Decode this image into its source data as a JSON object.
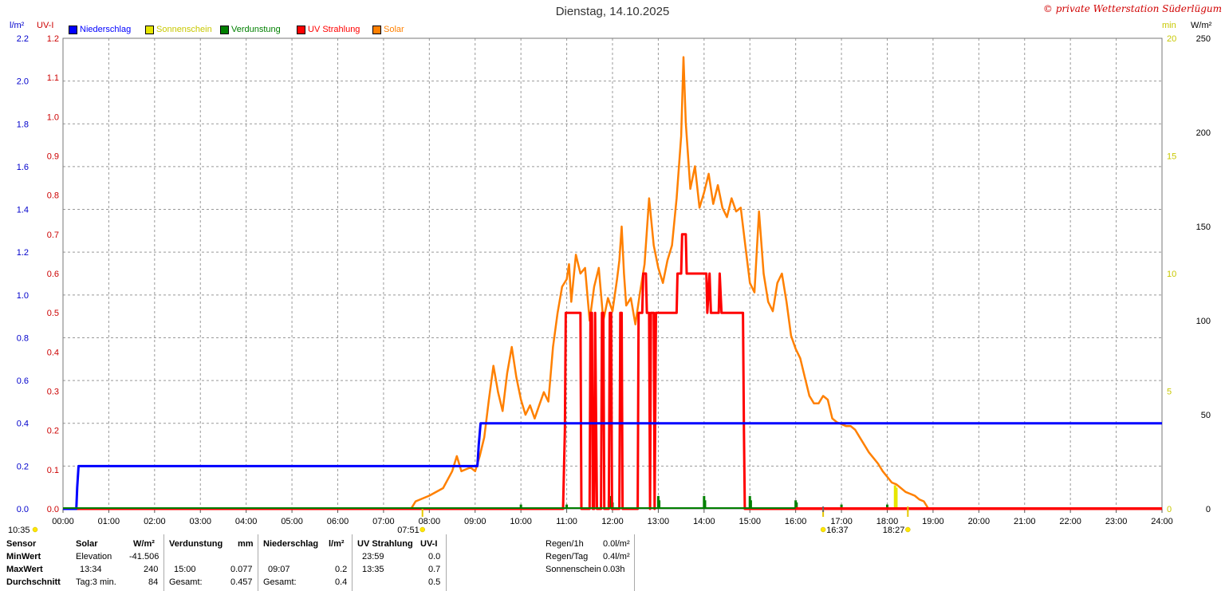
{
  "title": "Dienstag, 14.10.2025",
  "copyright": "© private Wetterstation Süderlügum",
  "units": {
    "left_outer": "l/m²",
    "left_inner": "UV-I",
    "right_inner": "min",
    "right_outer": "W/m²"
  },
  "legend": [
    {
      "label": "Niederschlag",
      "color": "#0000ff",
      "text_color": "#0000ff"
    },
    {
      "label": "Sonnenschein",
      "color": "#e6e600",
      "text_color": "#c8c800"
    },
    {
      "label": "Verdunstung",
      "color": "#008000",
      "text_color": "#008000"
    },
    {
      "label": "UV Strahlung",
      "color": "#ff0000",
      "text_color": "#ff0000"
    },
    {
      "label": "Solar",
      "color": "#ff8000",
      "text_color": "#ff8000"
    }
  ],
  "markers": {
    "bottom_left_time": "10:35",
    "sunrise": "07:51",
    "sunset_a": "16:37",
    "sunset_b": "18:27"
  },
  "stats": {
    "headers": {
      "sensor": "Sensor",
      "solar": "Solar",
      "solar_unit": "W/m²",
      "verd": "Verdunstung",
      "verd_unit": "mm",
      "nied": "Niederschlag",
      "nied_unit": "l/m²",
      "uv": "UV Strahlung",
      "uv_unit": "UV-I"
    },
    "row_labels": [
      "MinWert",
      "MaxWert",
      "Durchschnitt"
    ],
    "solar_min_label": "Elevation",
    "solar_min_value": "-41.506",
    "solar_max_time": "13:34",
    "solar_max_value": "240",
    "solar_avg_label": "Tag:3 min.",
    "solar_avg_value": "84",
    "verd_max_time": "15:00",
    "verd_max_value": "0.077",
    "verd_total_label": "Gesamt:",
    "verd_total_value": "0.457",
    "nied_max_time": "09:07",
    "nied_max_value": "0.2",
    "nied_total_label": "Gesamt:",
    "nied_total_value": "0.4",
    "uv_min_time": "23:59",
    "uv_min_value": "0.0",
    "uv_max_time": "13:35",
    "uv_max_value": "0.7",
    "uv_avg_value": "0.5",
    "regen1h_label": "Regen/1h",
    "regen1h_value": "0.0l/m²",
    "regentag_label": "Regen/Tag",
    "regentag_value": "0.4l/m²",
    "sonne_label": "Sonnenschein",
    "sonne_value": "0.03h"
  },
  "chart_data": {
    "type": "line",
    "x_ticks": [
      "00:00",
      "01:00",
      "02:00",
      "03:00",
      "04:00",
      "05:00",
      "06:00",
      "07:00",
      "08:00",
      "09:00",
      "10:00",
      "11:00",
      "12:00",
      "13:00",
      "14:00",
      "15:00",
      "16:00",
      "17:00",
      "18:00",
      "19:00",
      "20:00",
      "21:00",
      "22:00",
      "23:00",
      "24:00"
    ],
    "axes": {
      "niederschlag": {
        "unit": "l/m²",
        "range": [
          0,
          2.2
        ],
        "ticks": [
          "0.0",
          "0.2",
          "0.4",
          "0.6",
          "0.8",
          "1.0",
          "1.2",
          "1.4",
          "1.6",
          "1.8",
          "2.0",
          "2.2"
        ],
        "color": "#0000cc"
      },
      "uv": {
        "unit": "UV-I",
        "range": [
          0,
          1.2
        ],
        "ticks": [
          "0.0",
          "0.1",
          "0.2",
          "0.3",
          "0.4",
          "0.5",
          "0.6",
          "0.7",
          "0.8",
          "0.9",
          "1.0",
          "1.1",
          "1.2"
        ],
        "color": "#cc0000"
      },
      "sonnenschein": {
        "unit": "min",
        "range": [
          0,
          20
        ],
        "ticks": [
          "0",
          "5",
          "10",
          "15",
          "20"
        ],
        "color": "#c8c800"
      },
      "solar": {
        "unit": "W/m²",
        "range": [
          0,
          250
        ],
        "ticks": [
          "0",
          "50",
          "100",
          "150",
          "200",
          "250"
        ],
        "color": "#000000"
      }
    },
    "grid": true,
    "series": [
      {
        "name": "Niederschlag",
        "color": "#0000ff",
        "axis": "niederschlag",
        "points": [
          [
            0,
            0
          ],
          [
            0.29,
            0
          ],
          [
            0.31,
            0.1
          ],
          [
            0.34,
            0.2
          ],
          [
            9.05,
            0.2
          ],
          [
            9.08,
            0.3
          ],
          [
            9.12,
            0.4
          ],
          [
            24,
            0.4
          ]
        ]
      },
      {
        "name": "UV Strahlung",
        "color": "#ff0000",
        "axis": "uv",
        "points": [
          [
            0,
            0
          ],
          [
            10.92,
            0
          ],
          [
            10.96,
            0.2
          ],
          [
            10.98,
            0.5
          ],
          [
            11.3,
            0.5
          ],
          [
            11.32,
            0
          ],
          [
            11.5,
            0
          ],
          [
            11.52,
            0.5
          ],
          [
            11.55,
            0.5
          ],
          [
            11.57,
            0
          ],
          [
            11.6,
            0
          ],
          [
            11.62,
            0.5
          ],
          [
            11.66,
            0
          ],
          [
            11.75,
            0
          ],
          [
            11.77,
            0.5
          ],
          [
            11.8,
            0.5
          ],
          [
            11.82,
            0
          ],
          [
            11.92,
            0
          ],
          [
            11.94,
            0.5
          ],
          [
            11.97,
            0.5
          ],
          [
            11.99,
            0
          ],
          [
            12.15,
            0
          ],
          [
            12.17,
            0.5
          ],
          [
            12.2,
            0.5
          ],
          [
            12.22,
            0
          ],
          [
            12.55,
            0
          ],
          [
            12.57,
            0.5
          ],
          [
            12.65,
            0.5
          ],
          [
            12.67,
            0.6
          ],
          [
            12.73,
            0.6
          ],
          [
            12.75,
            0.5
          ],
          [
            12.8,
            0.5
          ],
          [
            12.82,
            0
          ],
          [
            12.84,
            0.5
          ],
          [
            12.9,
            0.5
          ],
          [
            12.92,
            0
          ],
          [
            12.95,
            0.5
          ],
          [
            13.4,
            0.5
          ],
          [
            13.42,
            0.6
          ],
          [
            13.5,
            0.6
          ],
          [
            13.52,
            0.7
          ],
          [
            13.6,
            0.7
          ],
          [
            13.62,
            0.6
          ],
          [
            14.05,
            0.6
          ],
          [
            14.07,
            0.5
          ],
          [
            14.12,
            0.6
          ],
          [
            14.15,
            0.5
          ],
          [
            14.32,
            0.5
          ],
          [
            14.34,
            0.6
          ],
          [
            14.38,
            0.5
          ],
          [
            14.85,
            0.5
          ],
          [
            14.87,
            0.2
          ],
          [
            14.89,
            0
          ],
          [
            24,
            0
          ]
        ]
      },
      {
        "name": "Solar",
        "color": "#ff8000",
        "axis": "solar",
        "points": [
          [
            7.6,
            0
          ],
          [
            7.7,
            4
          ],
          [
            8.0,
            7
          ],
          [
            8.3,
            11
          ],
          [
            8.5,
            20
          ],
          [
            8.6,
            28
          ],
          [
            8.7,
            20
          ],
          [
            8.8,
            21
          ],
          [
            8.9,
            22
          ],
          [
            9.0,
            20
          ],
          [
            9.1,
            28
          ],
          [
            9.2,
            38
          ],
          [
            9.3,
            58
          ],
          [
            9.4,
            76
          ],
          [
            9.5,
            62
          ],
          [
            9.6,
            52
          ],
          [
            9.7,
            72
          ],
          [
            9.8,
            86
          ],
          [
            9.9,
            70
          ],
          [
            10.0,
            58
          ],
          [
            10.1,
            50
          ],
          [
            10.2,
            55
          ],
          [
            10.3,
            48
          ],
          [
            10.4,
            55
          ],
          [
            10.5,
            62
          ],
          [
            10.6,
            57
          ],
          [
            10.7,
            86
          ],
          [
            10.8,
            104
          ],
          [
            10.9,
            118
          ],
          [
            11.0,
            122
          ],
          [
            11.05,
            130
          ],
          [
            11.1,
            110
          ],
          [
            11.2,
            135
          ],
          [
            11.3,
            125
          ],
          [
            11.4,
            128
          ],
          [
            11.5,
            100
          ],
          [
            11.6,
            118
          ],
          [
            11.7,
            128
          ],
          [
            11.8,
            100
          ],
          [
            11.9,
            112
          ],
          [
            12.0,
            105
          ],
          [
            12.1,
            122
          ],
          [
            12.15,
            132
          ],
          [
            12.2,
            150
          ],
          [
            12.25,
            125
          ],
          [
            12.3,
            108
          ],
          [
            12.4,
            112
          ],
          [
            12.5,
            98
          ],
          [
            12.6,
            115
          ],
          [
            12.7,
            130
          ],
          [
            12.8,
            165
          ],
          [
            12.9,
            140
          ],
          [
            13.0,
            128
          ],
          [
            13.1,
            120
          ],
          [
            13.2,
            132
          ],
          [
            13.3,
            140
          ],
          [
            13.4,
            165
          ],
          [
            13.5,
            198
          ],
          [
            13.55,
            240
          ],
          [
            13.6,
            205
          ],
          [
            13.7,
            170
          ],
          [
            13.8,
            182
          ],
          [
            13.9,
            160
          ],
          [
            14.0,
            168
          ],
          [
            14.1,
            178
          ],
          [
            14.2,
            162
          ],
          [
            14.3,
            172
          ],
          [
            14.4,
            160
          ],
          [
            14.5,
            155
          ],
          [
            14.6,
            165
          ],
          [
            14.7,
            158
          ],
          [
            14.8,
            160
          ],
          [
            14.9,
            140
          ],
          [
            15.0,
            120
          ],
          [
            15.1,
            115
          ],
          [
            15.2,
            158
          ],
          [
            15.3,
            125
          ],
          [
            15.4,
            110
          ],
          [
            15.5,
            105
          ],
          [
            15.6,
            120
          ],
          [
            15.7,
            125
          ],
          [
            15.8,
            110
          ],
          [
            15.9,
            92
          ],
          [
            16.0,
            85
          ],
          [
            16.1,
            80
          ],
          [
            16.2,
            70
          ],
          [
            16.3,
            60
          ],
          [
            16.4,
            56
          ],
          [
            16.5,
            56
          ],
          [
            16.6,
            60
          ],
          [
            16.7,
            58
          ],
          [
            16.8,
            48
          ],
          [
            16.9,
            46
          ],
          [
            17.0,
            45
          ],
          [
            17.1,
            44
          ],
          [
            17.2,
            44
          ],
          [
            17.3,
            42
          ],
          [
            17.4,
            38
          ],
          [
            17.5,
            34
          ],
          [
            17.6,
            30
          ],
          [
            17.7,
            27
          ],
          [
            17.8,
            24
          ],
          [
            17.9,
            20
          ],
          [
            18.0,
            17
          ],
          [
            18.1,
            14
          ],
          [
            18.2,
            13
          ],
          [
            18.3,
            11
          ],
          [
            18.4,
            9
          ],
          [
            18.5,
            8
          ],
          [
            18.6,
            7
          ],
          [
            18.7,
            5
          ],
          [
            18.8,
            4
          ],
          [
            18.9,
            0
          ]
        ]
      },
      {
        "name": "Sonnenschein",
        "color": "#e6e600",
        "axis": "sonnenschein",
        "bars": [
          [
            18.17,
            1.0
          ],
          [
            18.2,
            0.9
          ]
        ]
      },
      {
        "name": "Verdunstung",
        "color": "#008000",
        "axis": "niederschlag",
        "bars": [
          [
            10.0,
            0.02
          ],
          [
            11.0,
            0.02
          ],
          [
            11.92,
            0.04
          ],
          [
            11.97,
            0.06
          ],
          [
            12.0,
            0.03
          ],
          [
            13.0,
            0.06
          ],
          [
            13.02,
            0.04
          ],
          [
            14.0,
            0.06
          ],
          [
            14.02,
            0.04
          ],
          [
            15.0,
            0.06
          ],
          [
            15.02,
            0.04
          ],
          [
            16.0,
            0.04
          ],
          [
            16.02,
            0.03
          ],
          [
            17.0,
            0.02
          ],
          [
            18.0,
            0.02
          ]
        ]
      }
    ]
  }
}
